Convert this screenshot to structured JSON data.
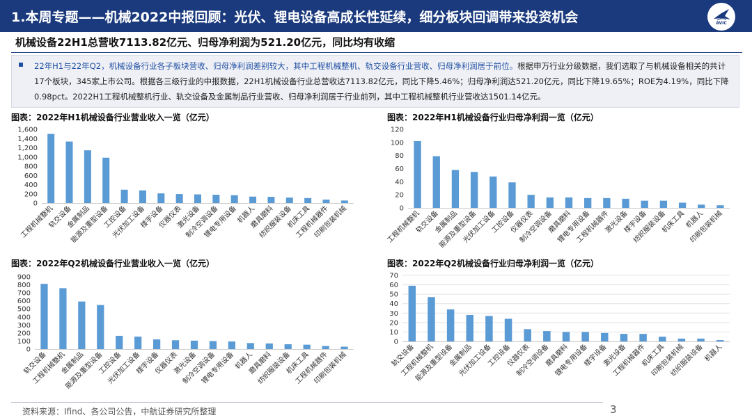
{
  "header": {
    "title": "1.本周专题——机械2022中报回顾：光伏、锂电设备高成长性延续，细分板块回调带来投资机会"
  },
  "logo": {
    "text": "AVIC"
  },
  "subtitle": "机械设备22H1总营收7113.82亿元、归母净利润为521.20亿元，同比均有收缩",
  "note": {
    "highlight": "22年H1与22年Q2，机械设备行业各子板块营收、归母净利润差别较大，其中工程机械整机、轨交设备行业营收、归母净利润居于前位。",
    "text": "根据申万行业分级数据，我们选取了与机械设备相关的共计17个板块，345家上市公司。根据各三级行业的中报数据，22H1机械设备行业总营收达7113.82亿元，同比下降5.46%；归母净利润达521.20亿元，同比下降19.65%；ROE为4.19%，同比下降0.98pct。2022H1工程机械整机行业、轨交设备及金属制品行业营收、归母净利润居于行业前列，其中工程机械整机行业营收达1501.14亿元。"
  },
  "chart_data": [
    {
      "type": "bar",
      "title": "图表：2022年H1机械设备行业营业收入一览（亿元）",
      "categories": [
        "工程机械整机",
        "轨交设备",
        "金属制品",
        "能源及重型设备",
        "工控设备",
        "光伏加工设备",
        "楼宇设备",
        "仪器仪表",
        "激光设备",
        "制冷空调设备",
        "锂电专用设备",
        "机器人",
        "磨具磨料",
        "纺织服装设备",
        "机床工具",
        "工程机械器件",
        "印刷包装机械"
      ],
      "values": [
        1501,
        1335,
        1145,
        985,
        290,
        275,
        210,
        195,
        188,
        180,
        170,
        140,
        135,
        118,
        108,
        75,
        55
      ],
      "ylim": [
        0,
        1600
      ],
      "ticks": [
        "0",
        "200",
        "400",
        "600",
        "800",
        "1,000",
        "1,200",
        "1,400",
        "1,600"
      ],
      "bar_color": "#5b9bd5",
      "grid": false
    },
    {
      "type": "bar",
      "title": "图表：2022年H1机械设备行业归母净利润一览（亿元）",
      "categories": [
        "工程机械整机",
        "轨交设备",
        "金属制品",
        "能源及重型设备",
        "光伏加工设备",
        "工控设备",
        "仪器仪表",
        "制冷空调设备",
        "磨具磨料",
        "锂电专用设备",
        "工程机械器件",
        "激光设备",
        "楼宇设备",
        "纺织服装设备",
        "机床工具",
        "机器人",
        "印刷包装机械"
      ],
      "values": [
        102,
        79,
        58,
        55,
        48,
        39,
        20,
        16,
        16,
        15,
        15,
        14,
        11,
        11,
        8,
        5,
        4
      ],
      "ylim": [
        0,
        120
      ],
      "ticks": [
        "0",
        "20",
        "40",
        "60",
        "80",
        "100",
        "120"
      ],
      "bar_color": "#5b9bd5",
      "grid": false
    },
    {
      "type": "bar",
      "title": "图表：2022年Q2机械设备行业营业收入一览（亿元）",
      "categories": [
        "轨交设备",
        "工程机械整机",
        "金属制品",
        "能源及重型设备",
        "工控设备",
        "光伏加工设备",
        "楼宇设备",
        "仪器仪表",
        "激光设备",
        "制冷空调设备",
        "锂电专用设备",
        "机器人",
        "磨具磨料",
        "纺织服装设备",
        "机床工具",
        "工程机械器件",
        "印刷包装机械"
      ],
      "values": [
        812,
        758,
        592,
        548,
        165,
        155,
        120,
        110,
        105,
        100,
        95,
        75,
        70,
        60,
        55,
        38,
        30
      ],
      "ylim": [
        0,
        900
      ],
      "ticks": [
        "0",
        "100",
        "200",
        "300",
        "400",
        "500",
        "600",
        "700",
        "800",
        "900"
      ],
      "bar_color": "#5b9bd5",
      "grid": false
    },
    {
      "type": "bar",
      "title": "图表：2022年Q2机械设备行业归母净利润一览（亿元）",
      "categories": [
        "轨交设备",
        "工程机械整机",
        "能源及重型设备",
        "金属制品",
        "光伏加工设备",
        "工控设备",
        "仪器仪表",
        "制冷空调设备",
        "磨具磨料",
        "锂电专用设备",
        "楼宇设备",
        "激光设备",
        "工程机械器件",
        "机床工具",
        "印刷包装机械",
        "纺织服装设备",
        "机器人"
      ],
      "values": [
        59,
        47,
        34,
        28,
        27,
        24,
        13,
        11,
        10,
        10,
        9,
        8,
        8,
        5,
        3,
        3,
        1.5
      ],
      "ylim": [
        0,
        70
      ],
      "ticks": [
        "0",
        "10",
        "20",
        "30",
        "40",
        "50",
        "60",
        "70"
      ],
      "bar_color": "#5b9bd5",
      "grid": true
    }
  ],
  "footer": {
    "source": "资料来源：Ifind、各公司公告，中航证券研究所整理",
    "page": "3"
  }
}
